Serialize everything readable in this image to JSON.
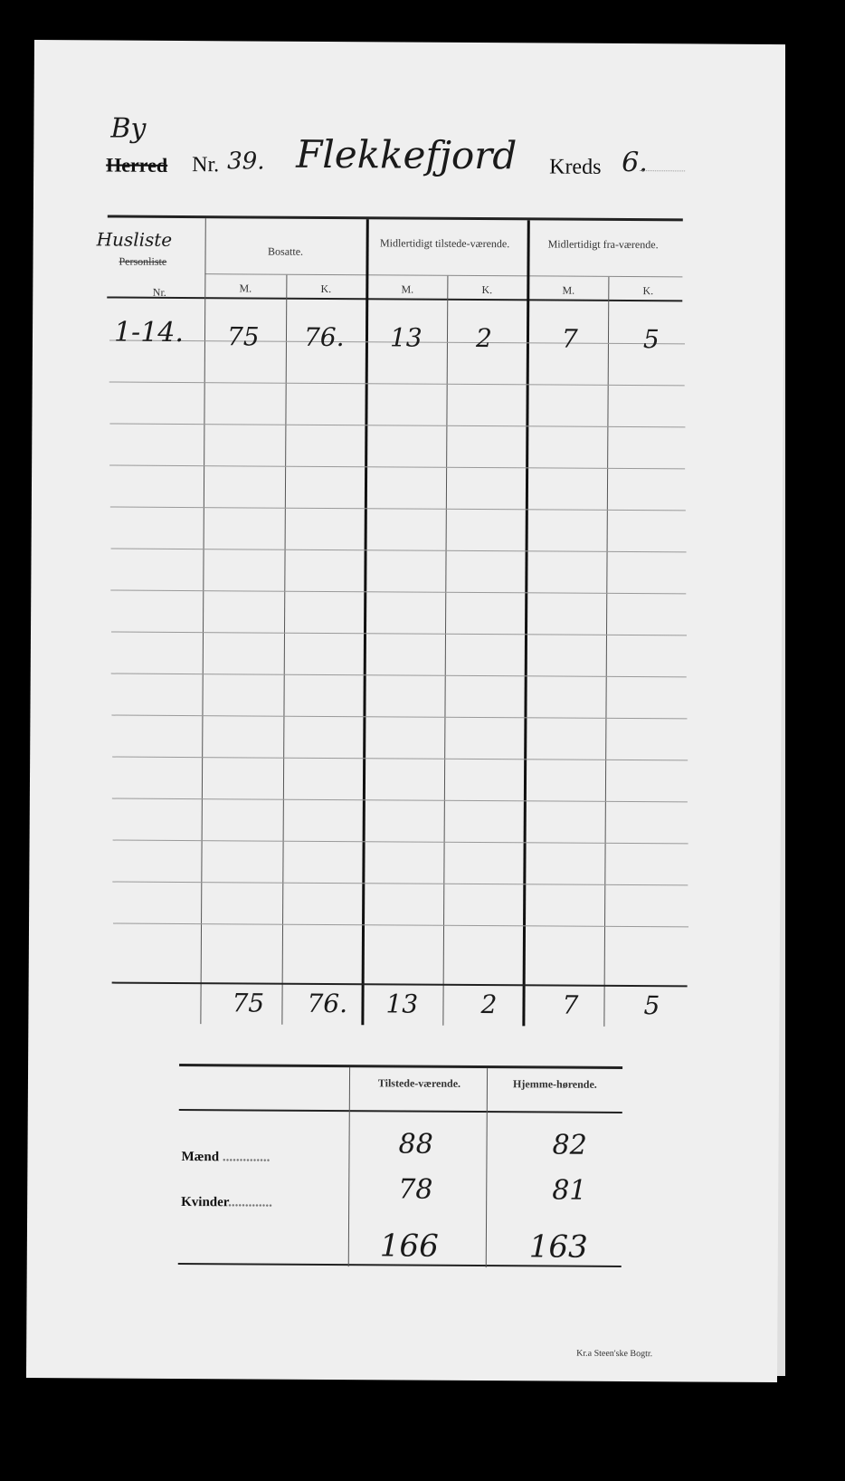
{
  "header": {
    "by_label": "By",
    "herred_label": "Herred",
    "nr_label": "Nr.",
    "nr_value": "39.",
    "place": "Flekkefjord",
    "kreds_label": "Kreds",
    "kreds_value": "6."
  },
  "table": {
    "col_list_handwritten": "Husliste",
    "col_list_printed": "Personliste",
    "col_nr": "Nr.",
    "groups": [
      "Bosatte.",
      "Midlertidigt tilstede-værende.",
      "Midlertidigt fra-værende."
    ],
    "sub": [
      "M.",
      "K.",
      "M.",
      "K.",
      "M.",
      "K."
    ],
    "rows": [
      {
        "nr": "1-14.",
        "values": [
          "75",
          "76.",
          "13",
          "2",
          "7",
          "5"
        ]
      }
    ],
    "totals": [
      "75",
      "76.",
      "13",
      "2",
      "7",
      "5"
    ]
  },
  "summary": {
    "headers": [
      "Tilstede-værende.",
      "Hjemme-hørende."
    ],
    "rows": [
      {
        "label": "Mænd",
        "values": [
          "88",
          "82"
        ]
      },
      {
        "label": "Kvinder",
        "values": [
          "78",
          "81"
        ]
      }
    ],
    "totals": [
      "166",
      "163"
    ]
  },
  "printer": "Kr.a  Steen'ske Bogtr."
}
